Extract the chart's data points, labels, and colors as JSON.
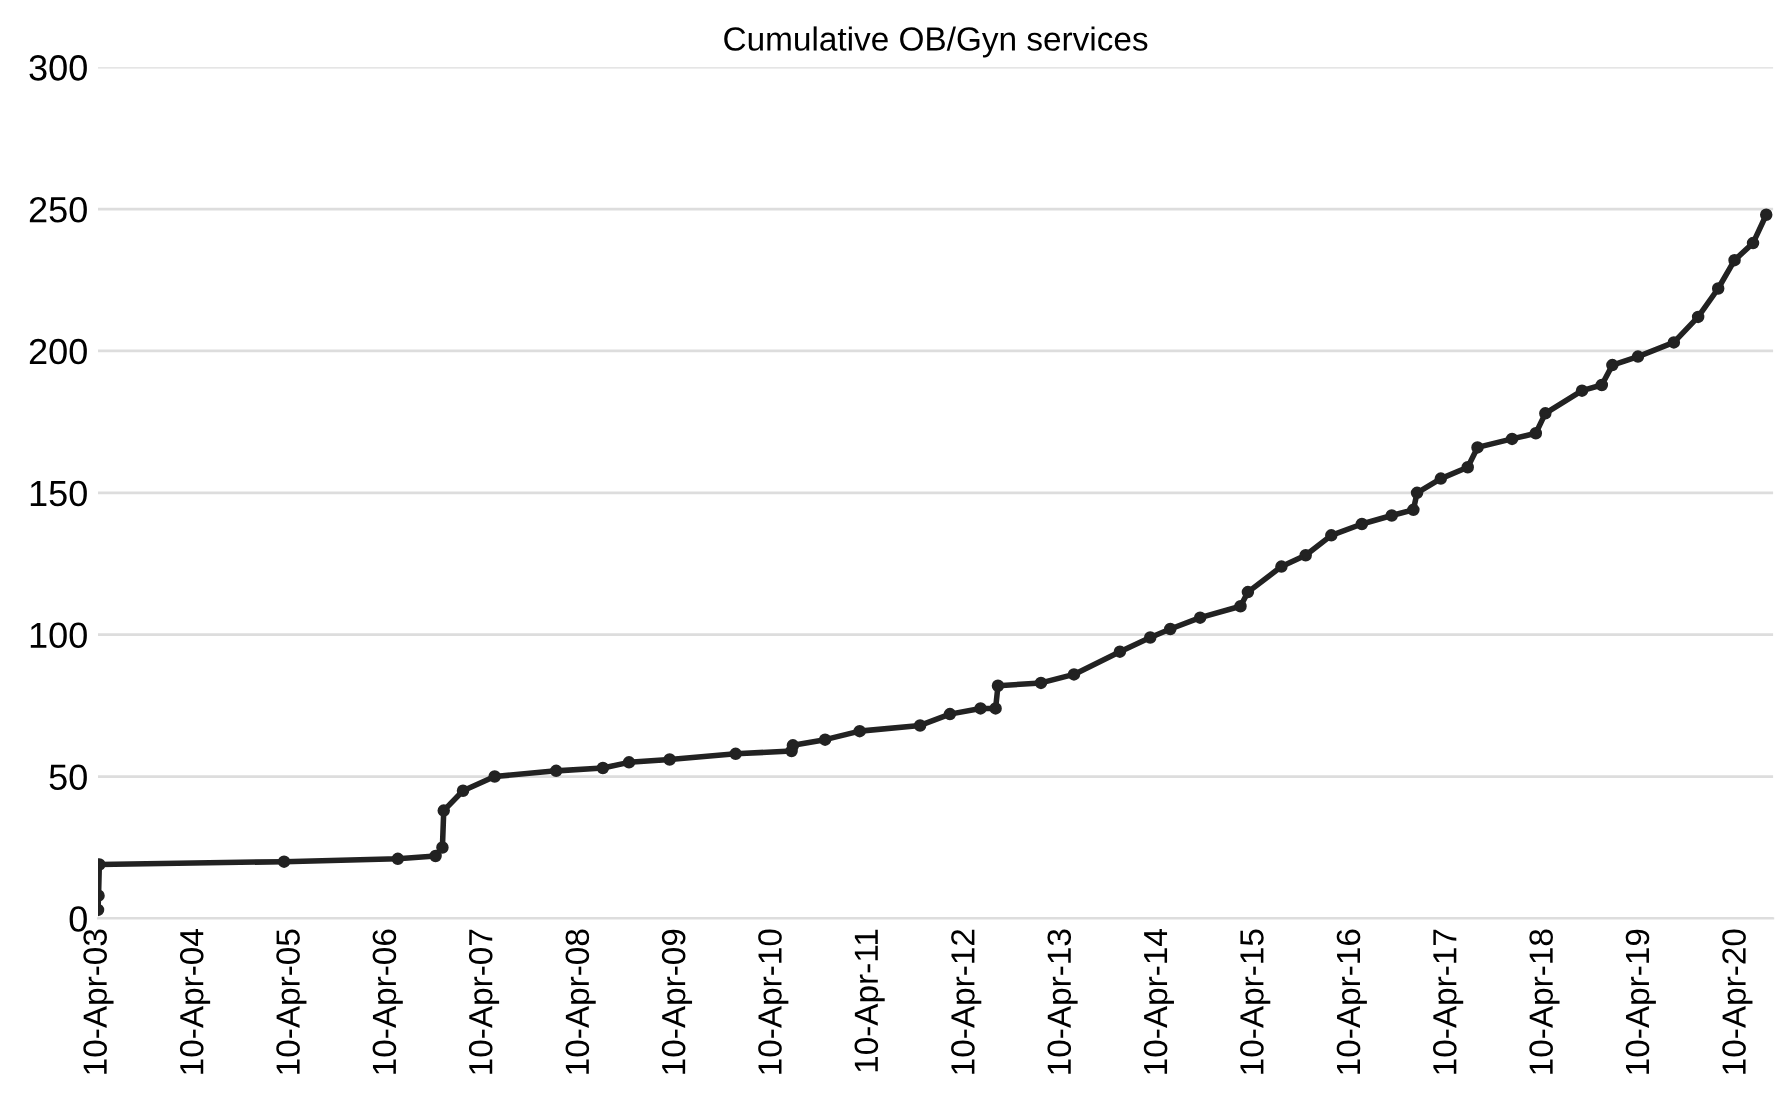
{
  "chart_data": {
    "type": "line",
    "title": "Cumulative OB/Gyn services",
    "x": [
      "2003-04-10",
      "2003-04-12",
      "2003-04-15",
      "2005-03-15",
      "2006-05-20",
      "2006-10-10",
      "2006-11-05",
      "2006-11-10",
      "2007-01-22",
      "2007-05-22",
      "2008-01-10",
      "2008-07-05",
      "2008-10-12",
      "2009-03-15",
      "2009-11-20",
      "2010-06-20",
      "2010-06-25",
      "2010-10-25",
      "2011-03-05",
      "2011-10-20",
      "2012-02-10",
      "2012-06-05",
      "2012-08-01",
      "2012-08-10",
      "2013-01-20",
      "2013-05-25",
      "2013-11-15",
      "2014-03-10",
      "2014-05-25",
      "2014-09-15",
      "2015-02-15",
      "2015-03-15",
      "2015-07-20",
      "2015-10-20",
      "2016-01-25",
      "2016-05-20",
      "2016-09-10",
      "2016-12-01",
      "2016-12-15",
      "2017-03-15",
      "2017-06-25",
      "2017-08-01",
      "2017-12-10",
      "2018-03-10",
      "2018-04-15",
      "2018-09-01",
      "2018-11-15",
      "2018-12-25",
      "2019-04-01",
      "2019-08-15",
      "2019-11-15",
      "2020-01-30",
      "2020-04-01",
      "2020-06-10",
      "2020-07-30"
    ],
    "series": [
      {
        "color": "#222222",
        "values": [
          3,
          8,
          19,
          20,
          21,
          22,
          25,
          38,
          45,
          50,
          52,
          53,
          55,
          56,
          58,
          59,
          61,
          63,
          66,
          68,
          72,
          74,
          74,
          82,
          83,
          86,
          94,
          99,
          102,
          106,
          110,
          115,
          124,
          128,
          135,
          139,
          142,
          144,
          150,
          155,
          159,
          166,
          169,
          171,
          178,
          186,
          188,
          195,
          198,
          203,
          212,
          222,
          232,
          238,
          248
        ]
      }
    ],
    "xlim": [
      "2003-04-10",
      "2020-08-25"
    ],
    "xticks": [
      {
        "value": "2003-04-10",
        "label": "10-Apr-03"
      },
      {
        "value": "2004-04-10",
        "label": "10-Apr-04"
      },
      {
        "value": "2005-04-10",
        "label": "10-Apr-05"
      },
      {
        "value": "2006-04-10",
        "label": "10-Apr-06"
      },
      {
        "value": "2007-04-10",
        "label": "10-Apr-07"
      },
      {
        "value": "2008-04-10",
        "label": "10-Apr-08"
      },
      {
        "value": "2009-04-10",
        "label": "10-Apr-09"
      },
      {
        "value": "2010-04-10",
        "label": "10-Apr-10"
      },
      {
        "value": "2011-04-10",
        "label": "10-Apr-11"
      },
      {
        "value": "2012-04-10",
        "label": "10-Apr-12"
      },
      {
        "value": "2013-04-10",
        "label": "10-Apr-13"
      },
      {
        "value": "2014-04-10",
        "label": "10-Apr-14"
      },
      {
        "value": "2015-04-10",
        "label": "10-Apr-15"
      },
      {
        "value": "2016-04-10",
        "label": "10-Apr-16"
      },
      {
        "value": "2017-04-10",
        "label": "10-Apr-17"
      },
      {
        "value": "2018-04-10",
        "label": "10-Apr-18"
      },
      {
        "value": "2019-04-10",
        "label": "10-Apr-19"
      },
      {
        "value": "2020-04-10",
        "label": "10-Apr-20"
      }
    ],
    "ylim": [
      0,
      300
    ],
    "yticks": [
      0,
      50,
      100,
      150,
      200,
      250,
      300
    ],
    "grid": "y",
    "marker": "circle",
    "line_style": "solid",
    "legend": false
  }
}
